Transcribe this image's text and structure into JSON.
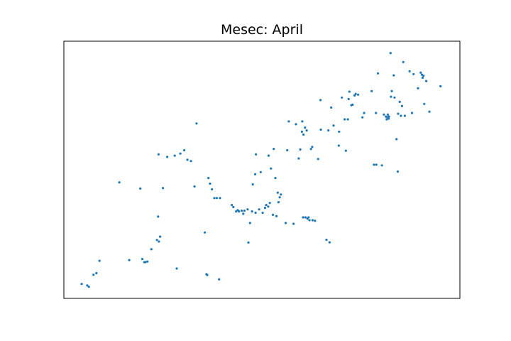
{
  "chart_data": {
    "type": "scatter",
    "title": "Mesec: April",
    "xlabel": "",
    "ylabel": "",
    "xlim": [
      0,
      100
    ],
    "ylim": [
      0,
      100
    ],
    "grid": false,
    "axis_ticks": false,
    "color": "#1f77b4",
    "points": [
      [
        4.5,
        5.6
      ],
      [
        5.9,
        5.0
      ],
      [
        6.3,
        4.5
      ],
      [
        7.5,
        9.2
      ],
      [
        8.2,
        9.8
      ],
      [
        9.0,
        14.6
      ],
      [
        14.0,
        45.1
      ],
      [
        16.5,
        14.9
      ],
      [
        19.3,
        42.7
      ],
      [
        19.8,
        15.3
      ],
      [
        20.3,
        14.1
      ],
      [
        20.6,
        14.1
      ],
      [
        21.1,
        14.3
      ],
      [
        22.1,
        19.1
      ],
      [
        23.5,
        22.7
      ],
      [
        23.8,
        31.8
      ],
      [
        24.0,
        22.1
      ],
      [
        24.3,
        24.0
      ],
      [
        23.9,
        56.0
      ],
      [
        25.0,
        42.9
      ],
      [
        26.1,
        55.0
      ],
      [
        28.0,
        55.5
      ],
      [
        28.5,
        11.6
      ],
      [
        29.4,
        56.3
      ],
      [
        30.4,
        57.6
      ],
      [
        31.2,
        53.9
      ],
      [
        32.1,
        53.4
      ],
      [
        33.0,
        43.5
      ],
      [
        33.5,
        68.0
      ],
      [
        35.6,
        25.6
      ],
      [
        36.0,
        9.4
      ],
      [
        36.2,
        9.1
      ],
      [
        36.5,
        46.8
      ],
      [
        36.9,
        44.6
      ],
      [
        37.4,
        42.4
      ],
      [
        38.0,
        39.0
      ],
      [
        38.6,
        39.0
      ],
      [
        39.2,
        7.4
      ],
      [
        39.4,
        39.0
      ],
      [
        42.4,
        36.3
      ],
      [
        42.8,
        35.5
      ],
      [
        43.5,
        33.8
      ],
      [
        43.9,
        34.3
      ],
      [
        44.2,
        33.8
      ],
      [
        44.9,
        34.1
      ],
      [
        45.3,
        32.9
      ],
      [
        45.6,
        34.1
      ],
      [
        46.4,
        34.6
      ],
      [
        46.6,
        21.7
      ],
      [
        47.0,
        29.3
      ],
      [
        47.5,
        33.8
      ],
      [
        47.7,
        44.3
      ],
      [
        48.3,
        48.3
      ],
      [
        48.4,
        33.3
      ],
      [
        48.5,
        56.0
      ],
      [
        49.3,
        34.6
      ],
      [
        49.7,
        49.1
      ],
      [
        50.2,
        33.3
      ],
      [
        50.8,
        35.2
      ],
      [
        51.1,
        36.3
      ],
      [
        51.6,
        35.7
      ],
      [
        51.7,
        55.5
      ],
      [
        52.0,
        37.1
      ],
      [
        52.3,
        50.5
      ],
      [
        52.8,
        32.5
      ],
      [
        53.0,
        58.1
      ],
      [
        53.4,
        46.8
      ],
      [
        53.7,
        32.0
      ],
      [
        54.0,
        41.1
      ],
      [
        54.2,
        37.4
      ],
      [
        54.5,
        39.3
      ],
      [
        54.8,
        40.4
      ],
      [
        56.0,
        29.3
      ],
      [
        56.4,
        57.6
      ],
      [
        56.8,
        68.8
      ],
      [
        58.0,
        29.0
      ],
      [
        58.6,
        67.7
      ],
      [
        59.3,
        54.4
      ],
      [
        59.7,
        57.9
      ],
      [
        60.1,
        64.8
      ],
      [
        60.2,
        68.8
      ],
      [
        60.4,
        31.5
      ],
      [
        60.5,
        63.7
      ],
      [
        60.9,
        66.4
      ],
      [
        61.0,
        31.5
      ],
      [
        61.3,
        65.3
      ],
      [
        61.5,
        31.0
      ],
      [
        61.8,
        31.5
      ],
      [
        62.0,
        30.4
      ],
      [
        62.4,
        58.1
      ],
      [
        62.7,
        58.9
      ],
      [
        62.8,
        30.4
      ],
      [
        63.4,
        30.2
      ],
      [
        64.2,
        54.2
      ],
      [
        64.8,
        77.1
      ],
      [
        64.9,
        65.6
      ],
      [
        66.3,
        22.8
      ],
      [
        66.8,
        65.3
      ],
      [
        67.1,
        21.8
      ],
      [
        68.1,
        67.2
      ],
      [
        69.5,
        64.8
      ],
      [
        67.5,
        74.2
      ],
      [
        69.4,
        59.4
      ],
      [
        70.2,
        78.1
      ],
      [
        70.9,
        69.6
      ],
      [
        71.2,
        57.4
      ],
      [
        71.7,
        69.6
      ],
      [
        71.9,
        77.5
      ],
      [
        72.1,
        80.4
      ],
      [
        72.6,
        75.1
      ],
      [
        72.9,
        75.3
      ],
      [
        73.4,
        78.9
      ],
      [
        73.7,
        79.5
      ],
      [
        74.3,
        79.2
      ],
      [
        75.4,
        70.4
      ],
      [
        75.8,
        72.1
      ],
      [
        77.7,
        80.6
      ],
      [
        78.3,
        52.0
      ],
      [
        78.8,
        72.1
      ],
      [
        78.9,
        52.0
      ],
      [
        79.3,
        87.5
      ],
      [
        80.3,
        51.7
      ],
      [
        80.8,
        71.5
      ],
      [
        81.3,
        70.7
      ],
      [
        81.5,
        69.6
      ],
      [
        81.7,
        70.5
      ],
      [
        81.8,
        71.5
      ],
      [
        82.0,
        69.9
      ],
      [
        82.1,
        70.7
      ],
      [
        82.5,
        95.4
      ],
      [
        82.6,
        78.4
      ],
      [
        82.8,
        80.6
      ],
      [
        83.3,
        86.7
      ],
      [
        83.5,
        78.1
      ],
      [
        84.0,
        61.9
      ],
      [
        84.3,
        49.3
      ],
      [
        84.4,
        71.8
      ],
      [
        84.8,
        76.4
      ],
      [
        85.1,
        71.0
      ],
      [
        85.4,
        74.8
      ],
      [
        85.7,
        91.9
      ],
      [
        86.1,
        71.0
      ],
      [
        87.3,
        88.3
      ],
      [
        87.9,
        72.1
      ],
      [
        88.3,
        87.2
      ],
      [
        89.4,
        81.7
      ],
      [
        90.1,
        87.8
      ],
      [
        90.4,
        87.0
      ],
      [
        90.6,
        85.8
      ],
      [
        90.8,
        86.6
      ],
      [
        91.0,
        75.6
      ],
      [
        91.5,
        84.5
      ],
      [
        92.3,
        72.6
      ],
      [
        95.1,
        82.5
      ]
    ]
  }
}
